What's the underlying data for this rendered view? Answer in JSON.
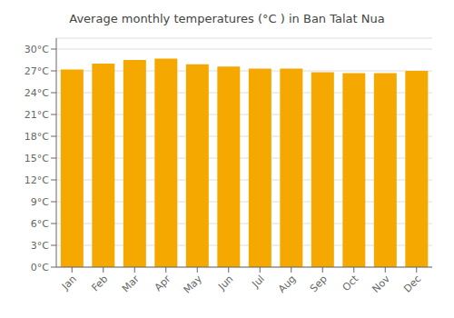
{
  "chart_data": {
    "type": "bar",
    "title": "Average monthly temperatures (°C ) in Ban Talat Nua",
    "categories": [
      "Jan",
      "Feb",
      "Mar",
      "Apr",
      "May",
      "Jun",
      "Jul",
      "Aug",
      "Sep",
      "Oct",
      "Nov",
      "Dec"
    ],
    "values": [
      27.2,
      28.0,
      28.5,
      28.7,
      27.9,
      27.6,
      27.3,
      27.3,
      26.8,
      26.7,
      26.7,
      27.0
    ],
    "color": "#F5A800",
    "ylim": [
      0,
      31.5
    ],
    "yticks": [
      {
        "value": 0,
        "label": "0°C"
      },
      {
        "value": 3,
        "label": "3°C"
      },
      {
        "value": 6,
        "label": "6°C"
      },
      {
        "value": 9,
        "label": "9°C"
      },
      {
        "value": 12,
        "label": "12°C"
      },
      {
        "value": 15,
        "label": "15°C"
      },
      {
        "value": 18,
        "label": "18°C"
      },
      {
        "value": 21,
        "label": "21°C"
      },
      {
        "value": 24,
        "label": "24°C"
      },
      {
        "value": 27,
        "label": "27°C"
      },
      {
        "value": 30,
        "label": "30°C"
      }
    ],
    "grid": true
  }
}
